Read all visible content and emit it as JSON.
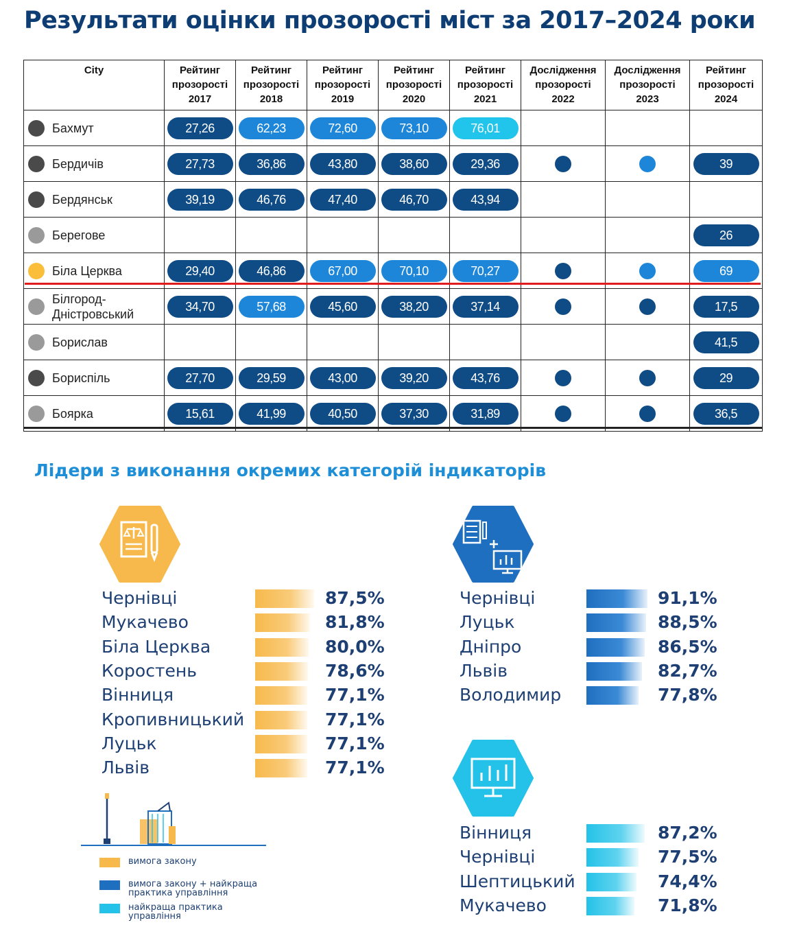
{
  "title": "Результати оцінки прозорості міст за 2017–2024 роки",
  "colors": {
    "dark": "#0f4b85",
    "medium": "#1d86d8",
    "light": "#21c4ea",
    "dot_dark": "#4a4a4a",
    "dot_grey": "#9a9a9a",
    "dot_yellow": "#fbbe3a",
    "orange_bar": "#f7b94b",
    "blue_bar": "#1f6fc0",
    "cyan_bar": "#24c2e8"
  },
  "table": {
    "headers": [
      [
        "City"
      ],
      [
        "Рейтинг",
        "прозорості",
        "2017"
      ],
      [
        "Рейтинг",
        "прозорості",
        "2018"
      ],
      [
        "Рейтинг",
        "прозорості",
        "2019"
      ],
      [
        "Рейтинг",
        "прозорості",
        "2020"
      ],
      [
        "Рейтинг",
        "прозорості",
        "2021"
      ],
      [
        "Дослідження",
        "прозорості",
        "2022"
      ],
      [
        "Дослідження",
        "прозорості",
        "2023"
      ],
      [
        "Рейтинг",
        "прозорості",
        "2024"
      ]
    ],
    "rows": [
      {
        "city": [
          "Бахмут"
        ],
        "dot": "dark",
        "cells": [
          [
            "27,26",
            "dark"
          ],
          [
            "62,23",
            "medium"
          ],
          [
            "72,60",
            "medium"
          ],
          [
            "73,10",
            "medium"
          ],
          [
            "76,01",
            "light"
          ],
          null,
          null,
          null
        ]
      },
      {
        "city": [
          "Бердичів"
        ],
        "dot": "dark",
        "cells": [
          [
            "27,73",
            "dark"
          ],
          [
            "36,86",
            "dark"
          ],
          [
            "43,80",
            "dark"
          ],
          [
            "38,60",
            "dark"
          ],
          [
            "29,36",
            "dark"
          ],
          [
            "dot",
            "dark"
          ],
          [
            "dot",
            "medium"
          ],
          [
            "39",
            "dark"
          ]
        ]
      },
      {
        "city": [
          "Бердянськ"
        ],
        "dot": "dark",
        "cells": [
          [
            "39,19",
            "dark"
          ],
          [
            "46,76",
            "dark"
          ],
          [
            "47,40",
            "dark"
          ],
          [
            "46,70",
            "dark"
          ],
          [
            "43,94",
            "dark"
          ],
          null,
          null,
          null
        ]
      },
      {
        "city": [
          "Берегове"
        ],
        "dot": "grey",
        "cells": [
          null,
          null,
          null,
          null,
          null,
          null,
          null,
          [
            "26",
            "dark"
          ]
        ]
      },
      {
        "city": [
          "Біла Церква"
        ],
        "dot": "yellow",
        "cells": [
          [
            "29,40",
            "dark"
          ],
          [
            "46,86",
            "dark"
          ],
          [
            "67,00",
            "medium"
          ],
          [
            "70,10",
            "medium"
          ],
          [
            "70,27",
            "medium"
          ],
          [
            "dot",
            "dark"
          ],
          [
            "dot",
            "medium"
          ],
          [
            "69",
            "medium"
          ]
        ]
      },
      {
        "city": [
          "Білгород-",
          "Дністровський"
        ],
        "dot": "grey",
        "cells": [
          [
            "34,70",
            "dark"
          ],
          [
            "57,68",
            "medium"
          ],
          [
            "45,60",
            "dark"
          ],
          [
            "38,20",
            "dark"
          ],
          [
            "37,14",
            "dark"
          ],
          [
            "dot",
            "dark"
          ],
          [
            "dot",
            "dark"
          ],
          [
            "17,5",
            "dark"
          ]
        ]
      },
      {
        "city": [
          "Борислав"
        ],
        "dot": "grey",
        "cells": [
          null,
          null,
          null,
          null,
          null,
          null,
          null,
          [
            "41,5",
            "dark"
          ]
        ]
      },
      {
        "city": [
          "Бориспіль"
        ],
        "dot": "dark",
        "cells": [
          [
            "27,70",
            "dark"
          ],
          [
            "29,59",
            "dark"
          ],
          [
            "43,00",
            "dark"
          ],
          [
            "39,20",
            "dark"
          ],
          [
            "43,76",
            "dark"
          ],
          [
            "dot",
            "dark"
          ],
          [
            "dot",
            "dark"
          ],
          [
            "29",
            "dark"
          ]
        ]
      },
      {
        "city": [
          "Боярка"
        ],
        "dot": "grey",
        "cells": [
          [
            "15,61",
            "dark"
          ],
          [
            "41,99",
            "dark"
          ],
          [
            "40,50",
            "dark"
          ],
          [
            "37,30",
            "dark"
          ],
          [
            "31,89",
            "dark"
          ],
          [
            "dot",
            "dark"
          ],
          [
            "dot",
            "dark"
          ],
          [
            "36,5",
            "dark"
          ]
        ]
      }
    ]
  },
  "leaders": {
    "title": "Лідери з виконання окремих категорій індикаторів",
    "groups": [
      {
        "icon": "legal-document-icon",
        "color": "orange",
        "items": [
          {
            "city": "Чернівці",
            "value": "87,5%",
            "pct": 87.5
          },
          {
            "city": "Мукачево",
            "value": "81,8%",
            "pct": 81.8
          },
          {
            "city": "Біла Церква",
            "value": "80,0%",
            "pct": 80.0
          },
          {
            "city": "Коростень",
            "value": "78,6%",
            "pct": 78.6
          },
          {
            "city": "Вінниця",
            "value": "77,1%",
            "pct": 77.1
          },
          {
            "city": "Кропивницький",
            "value": "77,1%",
            "pct": 77.1
          },
          {
            "city": "Луцьк",
            "value": "77,1%",
            "pct": 77.1
          },
          {
            "city": "Львів",
            "value": "77,1%",
            "pct": 77.1
          }
        ]
      },
      {
        "icon": "document-plus-monitor-icon",
        "color": "blue",
        "items": [
          {
            "city": "Чернівці",
            "value": "91,1%",
            "pct": 91.1
          },
          {
            "city": "Луцьк",
            "value": "88,5%",
            "pct": 88.5
          },
          {
            "city": "Дніпро",
            "value": "86,5%",
            "pct": 86.5
          },
          {
            "city": "Львів",
            "value": "82,7%",
            "pct": 82.7
          },
          {
            "city": "Володимир",
            "value": "77,8%",
            "pct": 77.8
          }
        ]
      },
      {
        "icon": "monitor-chart-icon",
        "color": "cyan",
        "items": [
          {
            "city": "Вінниця",
            "value": "87,2%",
            "pct": 87.2
          },
          {
            "city": "Чернівці",
            "value": "77,5%",
            "pct": 77.5
          },
          {
            "city": "Шептицький",
            "value": "74,4%",
            "pct": 74.4
          },
          {
            "city": "Мукачево",
            "value": "71,8%",
            "pct": 71.8
          }
        ]
      }
    ],
    "legend": [
      {
        "color": "orange",
        "text": [
          "вимога закону"
        ]
      },
      {
        "color": "blue",
        "text": [
          "вимога закону + найкраща",
          "практика управління"
        ]
      },
      {
        "color": "cyan",
        "text": [
          "найкраща практика",
          "управління"
        ]
      }
    ]
  }
}
